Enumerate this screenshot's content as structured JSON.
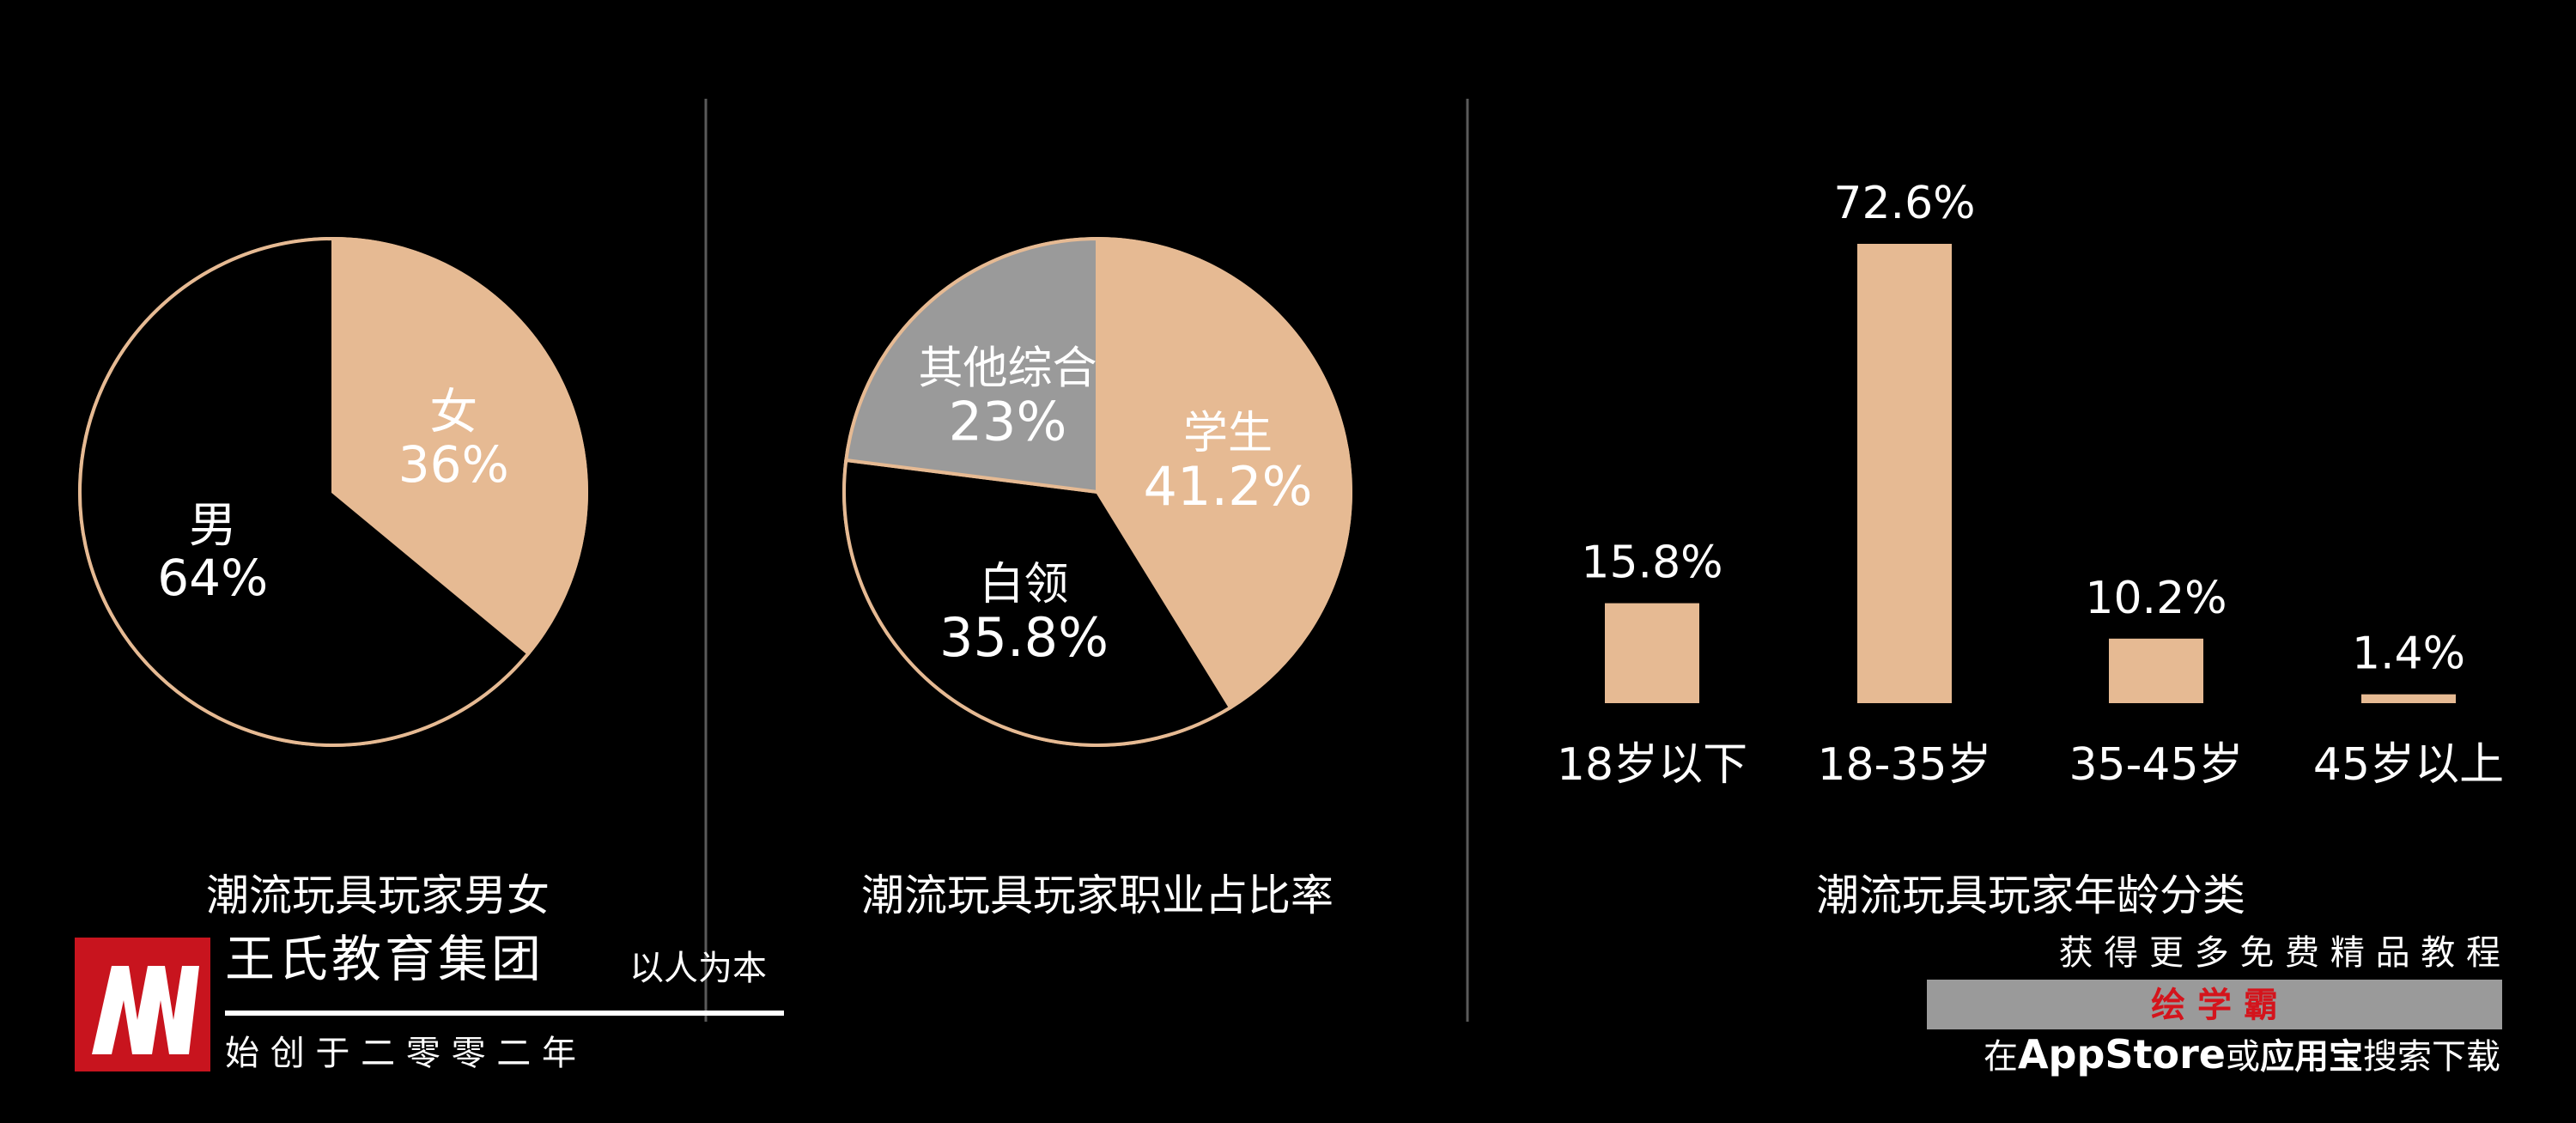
{
  "colors": {
    "background": "#000000",
    "peach": "#E6BA93",
    "gray": "#9A9A9A",
    "divider": "#5A5A5A",
    "text": "#FFFFFF",
    "logo_red": "#C8141E",
    "banner_red": "#D4141C"
  },
  "chart_data": [
    {
      "type": "pie",
      "title": "潮流玩具玩家男女",
      "slices": [
        {
          "label": "女",
          "value": 36,
          "display": "36%",
          "color": "#E6BA93"
        },
        {
          "label": "男",
          "value": 64,
          "display": "64%",
          "color": "#000000"
        }
      ]
    },
    {
      "type": "pie",
      "title": "潮流玩具玩家职业占比率",
      "slices": [
        {
          "label": "学生",
          "value": 41.2,
          "display": "41.2%",
          "color": "#E6BA93"
        },
        {
          "label": "白领",
          "value": 35.8,
          "display": "35.8%",
          "color": "#000000"
        },
        {
          "label": "其他综合",
          "value": 23,
          "display": "23%",
          "color": "#9A9A9A"
        }
      ]
    },
    {
      "type": "bar",
      "title": "潮流玩具玩家年龄分类",
      "categories": [
        "18岁以下",
        "18-35岁",
        "35-45岁",
        "45岁以上"
      ],
      "values": [
        15.8,
        72.6,
        10.2,
        1.4
      ],
      "value_labels": [
        "15.8%",
        "72.6%",
        "10.2%",
        "1.4%"
      ],
      "ylim": [
        0,
        72.6
      ]
    }
  ],
  "logo": {
    "company": "王氏教育集团",
    "slogan": "以人为本",
    "founded": "始 创 于 二 零 零 二 年"
  },
  "promo": {
    "line1": "获 得 更 多 免 费 精 品 教 程",
    "banner": "绘 学 霸",
    "line3_prefix": "在",
    "line3_app": "AppStore",
    "line3_or": "或",
    "line3_yyb": "应用宝",
    "line3_suffix": "搜索下载"
  }
}
